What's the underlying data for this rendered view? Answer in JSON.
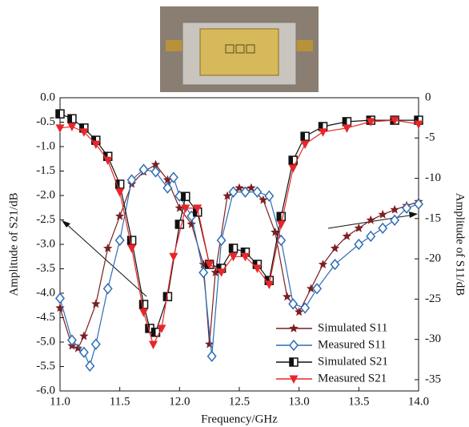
{
  "chart_data": {
    "type": "line",
    "xlabel": "Frequency/GHz",
    "ylabel": "Amplitude of S21/dB",
    "y2label": "Amplitude of S11/dB",
    "xlim": [
      11,
      14
    ],
    "xticks": [
      {
        "value": 11,
        "label": "11.0"
      },
      11.5,
      {
        "value": 12,
        "label": "12.0"
      },
      12.5,
      {
        "value": 13,
        "label": "13.0"
      },
      13.5,
      {
        "value": 14,
        "label": "14.0"
      }
    ],
    "ylim": [
      -6,
      0
    ],
    "yticks": [
      {
        "value": 0,
        "label": "0.0"
      },
      -0.5,
      {
        "value": -1,
        "label": "-1.0"
      },
      -1.5,
      {
        "value": -2,
        "label": "-2.0"
      },
      -2.5,
      {
        "value": -3,
        "label": "-3.0"
      },
      -3.5,
      {
        "value": -4,
        "label": "-4.0"
      },
      -4.5,
      {
        "value": -5,
        "label": "-5.0"
      },
      -5.5,
      {
        "value": -6,
        "label": "-6.0"
      }
    ],
    "y2lim": [
      -36.4,
      0
    ],
    "y2ticks": [
      0,
      -5,
      -10,
      -15,
      -20,
      -25,
      -30,
      -35
    ],
    "legend": "lower right",
    "series": [
      {
        "name": "Simulated S11",
        "color": "#7a1f22",
        "marker": "star",
        "axis": "y2",
        "x": [
          11.0,
          11.1,
          11.15,
          11.2,
          11.3,
          11.4,
          11.5,
          11.6,
          11.7,
          11.8,
          11.9,
          12.0,
          12.1,
          12.2,
          12.25,
          12.3,
          12.4,
          12.5,
          12.6,
          12.7,
          12.8,
          12.9,
          13.0,
          13.1,
          13.2,
          13.3,
          13.4,
          13.5,
          13.6,
          13.7,
          13.8,
          13.9,
          14.0
        ],
        "values": [
          -26.1,
          -30.8,
          -31.1,
          -29.6,
          -25.6,
          -18.7,
          -14.7,
          -10.7,
          -9.2,
          -8.3,
          -10.2,
          -13.7,
          -15.7,
          -20.7,
          -30.6,
          -21.7,
          -12.2,
          -11.2,
          -11.2,
          -12.7,
          -16.7,
          -24.7,
          -26.6,
          -23.7,
          -20.7,
          -18.7,
          -17.2,
          -16.2,
          -15.2,
          -14.5,
          -13.9,
          -13.4,
          -12.9
        ]
      },
      {
        "name": "Measured S11",
        "color": "#2e6db4",
        "marker": "diamond",
        "axis": "y2",
        "x": [
          11.0,
          11.1,
          11.2,
          11.25,
          11.3,
          11.4,
          11.5,
          11.6,
          11.7,
          11.8,
          11.9,
          11.95,
          12.0,
          12.1,
          12.2,
          12.27,
          12.35,
          12.45,
          12.55,
          12.65,
          12.75,
          12.85,
          12.95,
          13.05,
          13.15,
          13.3,
          13.5,
          13.6,
          13.7,
          13.8,
          13.9,
          14.0
        ],
        "values": [
          -24.9,
          -30.1,
          -31.6,
          -33.3,
          -30.6,
          -23.7,
          -17.7,
          -10.2,
          -8.9,
          -9.2,
          -11.2,
          -9.9,
          -12.2,
          -14.7,
          -21.7,
          -32.1,
          -17.7,
          -11.7,
          -11.7,
          -11.7,
          -12.2,
          -17.7,
          -25.6,
          -26.1,
          -23.7,
          -20.7,
          -18.2,
          -17.2,
          -16.2,
          -15.2,
          -13.7,
          -13.2
        ]
      },
      {
        "name": "Simulated S21",
        "color": "#111111",
        "marker": "square",
        "x": [
          11.0,
          11.1,
          11.2,
          11.3,
          11.4,
          11.5,
          11.6,
          11.7,
          11.75,
          11.8,
          11.9,
          12.0,
          12.05,
          12.15,
          12.25,
          12.35,
          12.45,
          12.55,
          12.65,
          12.75,
          12.85,
          12.95,
          13.05,
          13.2,
          13.4,
          13.6,
          13.8,
          14.0
        ],
        "values": [
          -0.33,
          -0.43,
          -0.62,
          -0.87,
          -1.2,
          -1.77,
          -2.92,
          -4.23,
          -4.72,
          -4.8,
          -4.07,
          -2.59,
          -2.02,
          -2.34,
          -3.41,
          -3.49,
          -3.08,
          -3.16,
          -3.41,
          -3.74,
          -2.43,
          -1.28,
          -0.79,
          -0.59,
          -0.49,
          -0.46,
          -0.46,
          -0.46
        ]
      },
      {
        "name": "Measured S21",
        "color": "#e8262a",
        "marker": "triangle",
        "x": [
          11.0,
          11.1,
          11.2,
          11.3,
          11.4,
          11.5,
          11.6,
          11.7,
          11.78,
          11.85,
          11.95,
          12.05,
          12.15,
          12.25,
          12.35,
          12.45,
          12.55,
          12.65,
          12.75,
          12.85,
          12.95,
          13.05,
          13.2,
          13.4,
          13.6,
          13.8,
          14.0
        ],
        "values": [
          -0.62,
          -0.59,
          -0.7,
          -0.95,
          -1.28,
          -1.93,
          -3.08,
          -4.39,
          -5.05,
          -4.72,
          -3.25,
          -2.26,
          -2.26,
          -3.41,
          -3.57,
          -3.25,
          -3.25,
          -3.49,
          -3.82,
          -2.59,
          -1.44,
          -0.95,
          -0.7,
          -0.62,
          -0.49,
          -0.46,
          -0.54
        ]
      }
    ]
  }
}
